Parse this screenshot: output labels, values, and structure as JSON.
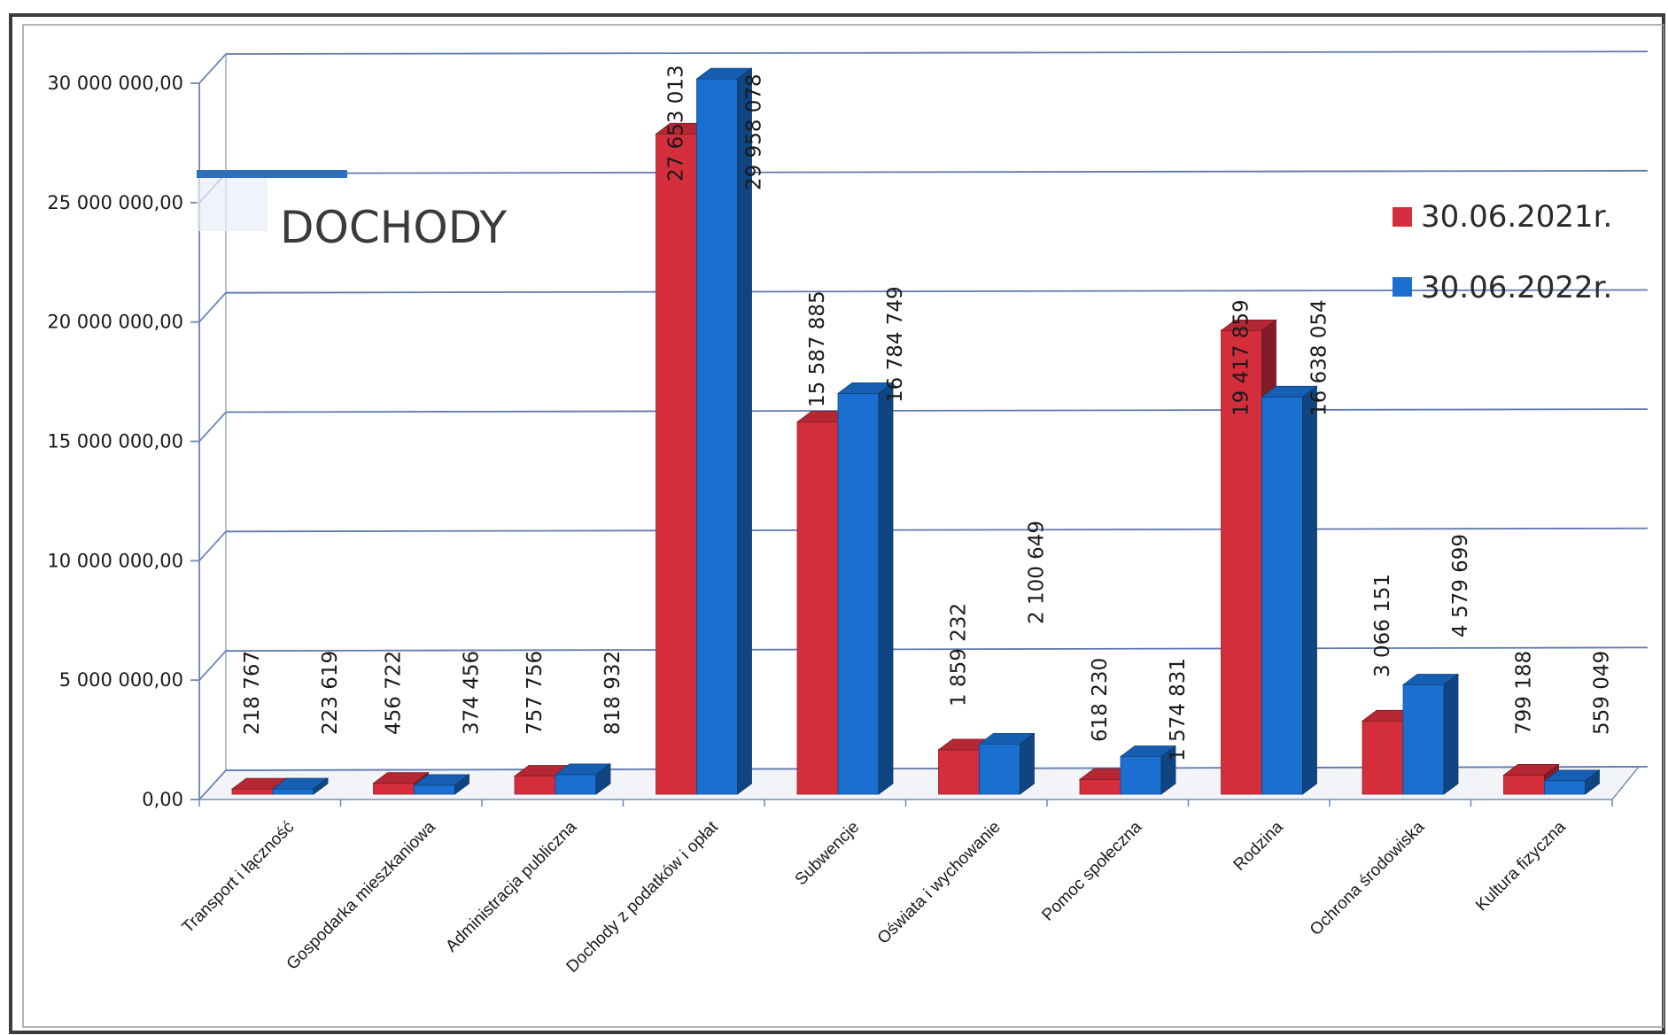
{
  "chart_data": {
    "type": "bar",
    "title": "DOCHODY",
    "xlabel": "",
    "ylabel": "",
    "ylim": [
      0,
      30000000
    ],
    "yticks": [
      "0,00",
      "5 000 000,00",
      "10 000 000,00",
      "15 000 000,00",
      "20 000 000,00",
      "25 000 000,00",
      "30 000 000,00"
    ],
    "ytick_values": [
      0,
      5000000,
      10000000,
      15000000,
      20000000,
      25000000,
      30000000
    ],
    "grid": true,
    "legend_position": "right",
    "categories": [
      "Transport i łączność",
      "Gospodarka mieszkaniowa",
      "Administracja publiczna",
      "Dochody z podatków i opłat",
      "Subwencje",
      "Oświata i wychowanie",
      "Pomoc społeczna",
      "Rodzina",
      "Ochrona środowiska",
      "Kultura fizyczna"
    ],
    "series": [
      {
        "name": "30.06.2021r.",
        "color": "#d42e3c",
        "values": [
          218767,
          456722,
          757756,
          27653013,
          15587885,
          1859232,
          618230,
          19417859,
          3066151,
          799188
        ],
        "labels": [
          "218 767",
          "456 722",
          "757 756",
          "27 653 013",
          "15 587 885",
          "1 859 232",
          "618 230",
          "19 417 859",
          "3 066 151",
          "799 188"
        ]
      },
      {
        "name": "30.06.2022r.",
        "color": "#1a6fd0",
        "values": [
          223619,
          374456,
          818932,
          29958078,
          16784749,
          2100649,
          1574831,
          16638054,
          4579699,
          559049
        ],
        "labels": [
          "223 619",
          "374 456",
          "818 932",
          "29 958 078",
          "16 784 749",
          "2 100 649",
          "1 574 831",
          "16 638 054",
          "4 579 699",
          "559 049"
        ]
      }
    ]
  }
}
